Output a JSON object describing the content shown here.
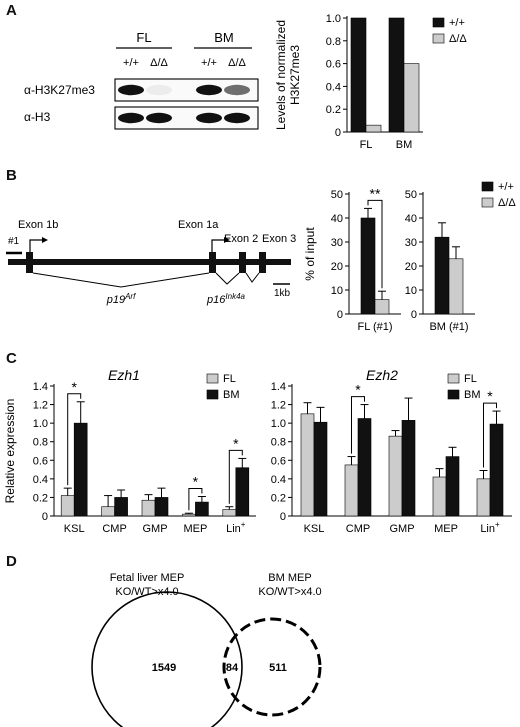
{
  "panels": [
    "A",
    "B",
    "C",
    "D"
  ],
  "panel_a": {
    "blot": {
      "groups": [
        "FL",
        "BM"
      ],
      "lanes": [
        "+/+",
        "Δ/Δ",
        "+/+",
        "Δ/Δ"
      ],
      "rows": [
        "α-H3K27me3",
        "α-H3"
      ],
      "row1_intensity": [
        1.0,
        0.06,
        1.0,
        0.6
      ],
      "row2_intensity": [
        1.0,
        1.0,
        1.0,
        1.0
      ]
    }
  },
  "panel_b": {
    "gene": {
      "exons": [
        "Exon 1b",
        "Exon 1a",
        "Exon 2",
        "Exon 3"
      ],
      "transcripts": [
        {
          "name": "p19",
          "sup": "Arf"
        },
        {
          "name": "p16",
          "sup": "Ink4a"
        }
      ],
      "region": "#1",
      "scale": "1kb"
    }
  },
  "panel_c": {
    "ylabel": "Relative expression"
  },
  "panel_d": {
    "sets": [
      {
        "title1": "Fetal liver MEP",
        "title2": "KO/WT>x4.0",
        "only": "1549"
      },
      {
        "title1": "BM MEP",
        "title2": "KO/WT>x4.0",
        "only": "511"
      }
    ],
    "overlap": "84"
  },
  "chart_data": [
    {
      "type": "bar",
      "panel": "A",
      "categories": [
        "FL",
        "BM"
      ],
      "series": [
        {
          "name": "+/+",
          "values": [
            1.0,
            1.0
          ],
          "color": "#111111"
        },
        {
          "name": "Δ/Δ",
          "values": [
            0.06,
            0.6
          ],
          "color": "#cccccc"
        }
      ],
      "ylabel": "Levels of normalized H3K27me3",
      "ylim": [
        0,
        1.0
      ],
      "yticks": [
        "0",
        "0.2",
        "0.4",
        "0.6",
        "0.8",
        "1.0"
      ],
      "legend": "top-right"
    },
    {
      "type": "bar",
      "panel": "B",
      "categories": [
        "FL (#1)"
      ],
      "series": [
        {
          "name": "+/+",
          "values": [
            40
          ],
          "errors": [
            4
          ],
          "color": "#111111"
        },
        {
          "name": "Δ/Δ",
          "values": [
            6
          ],
          "errors": [
            3.5
          ],
          "color": "#cccccc"
        }
      ],
      "ylabel": "% of input",
      "ylim": [
        0,
        50
      ],
      "yticks": [
        "0",
        "10",
        "20",
        "30",
        "40",
        "50"
      ],
      "significance": "**"
    },
    {
      "type": "bar",
      "panel": "B",
      "categories": [
        "BM (#1)"
      ],
      "series": [
        {
          "name": "+/+",
          "values": [
            32
          ],
          "errors": [
            6
          ],
          "color": "#111111"
        },
        {
          "name": "Δ/Δ",
          "values": [
            23
          ],
          "errors": [
            5
          ],
          "color": "#cccccc"
        }
      ],
      "ylim": [
        0,
        50
      ],
      "yticks": [
        "0",
        "10",
        "20",
        "30",
        "40",
        "50"
      ],
      "legend": "top-right"
    },
    {
      "type": "bar",
      "panel": "C",
      "title": "Ezh1",
      "categories": [
        "KSL",
        "CMP",
        "GMP",
        "MEP",
        "Lin+"
      ],
      "series": [
        {
          "name": "FL",
          "values": [
            0.22,
            0.1,
            0.17,
            0.02,
            0.07
          ],
          "errors": [
            0.08,
            0.12,
            0.06,
            0.01,
            0.03
          ],
          "color": "#cccccc"
        },
        {
          "name": "BM",
          "values": [
            1.0,
            0.2,
            0.2,
            0.15,
            0.52
          ],
          "errors": [
            0.23,
            0.08,
            0.1,
            0.06,
            0.1
          ],
          "color": "#111111"
        }
      ],
      "ylabel": "Relative expression",
      "ylim": [
        0,
        1.4
      ],
      "yticks": [
        "0",
        "0.2",
        "0.4",
        "0.6",
        "0.8",
        "1.0",
        "1.2",
        "1.4"
      ],
      "significance": [
        {
          "category": "KSL",
          "label": "*"
        },
        {
          "category": "MEP",
          "label": "*"
        },
        {
          "category": "Lin+",
          "label": "*"
        }
      ],
      "legend": "top-right"
    },
    {
      "type": "bar",
      "panel": "C",
      "title": "Ezh2",
      "categories": [
        "KSL",
        "CMP",
        "GMP",
        "MEP",
        "Lin+"
      ],
      "series": [
        {
          "name": "FL",
          "values": [
            1.1,
            0.55,
            0.86,
            0.42,
            0.4
          ],
          "errors": [
            0.12,
            0.09,
            0.06,
            0.09,
            0.09
          ],
          "color": "#cccccc"
        },
        {
          "name": "BM",
          "values": [
            1.01,
            1.05,
            1.03,
            0.64,
            0.99
          ],
          "errors": [
            0.16,
            0.15,
            0.24,
            0.1,
            0.14
          ],
          "color": "#111111"
        }
      ],
      "ylim": [
        0,
        1.4
      ],
      "yticks": [
        "0",
        "0.2",
        "0.4",
        "0.6",
        "0.8",
        "1.0",
        "1.2",
        "1.4"
      ],
      "significance": [
        {
          "category": "CMP",
          "label": "*"
        },
        {
          "category": "Lin+",
          "label": "*"
        }
      ],
      "legend": "top-right"
    }
  ]
}
